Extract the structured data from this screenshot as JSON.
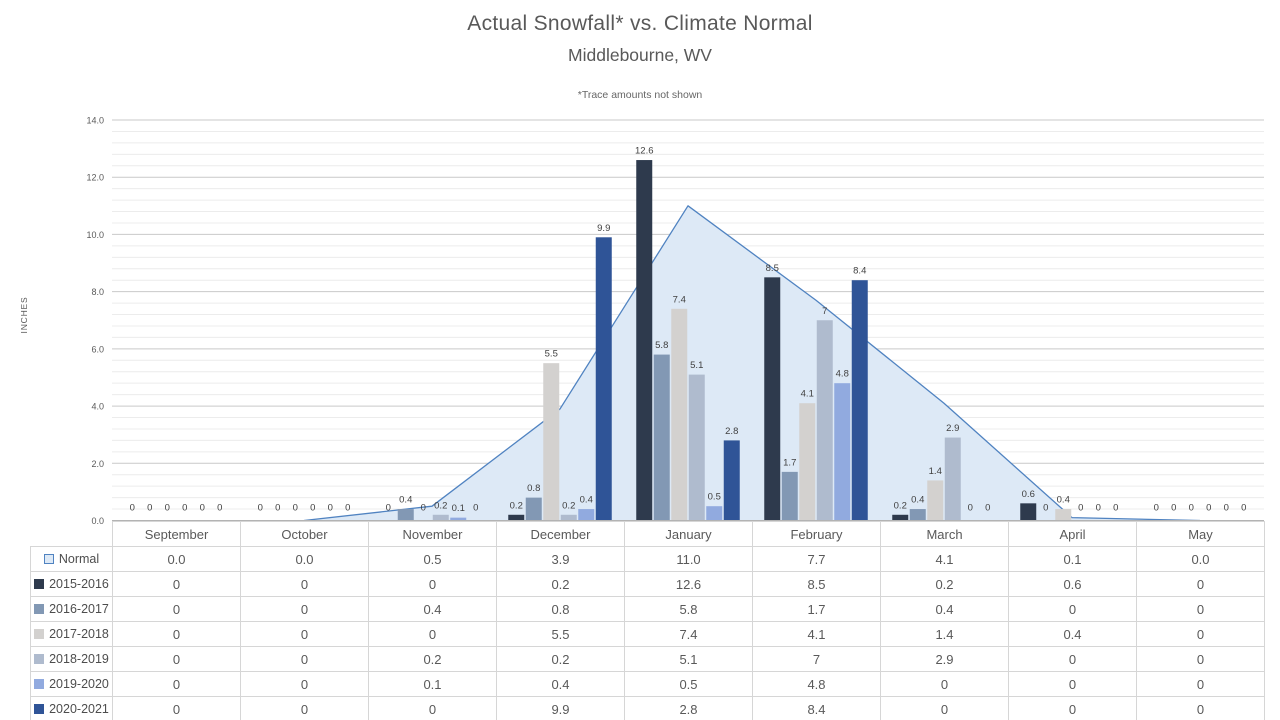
{
  "chart_data": {
    "type": "combo-area-bar-with-data-table",
    "title": "Actual Snowfall* vs. Climate Normal",
    "subtitle": "Middlebourne,  WV",
    "annotation": "*Trace amounts not shown",
    "xlabel": "",
    "ylabel": "INCHES",
    "ylim": [
      0,
      14
    ],
    "y_major_unit": 2.0,
    "y_minor_unit": 0.4,
    "y_major_ticks": [
      "0.0",
      "2.0",
      "4.0",
      "6.0",
      "8.0",
      "10.0",
      "12.0",
      "14.0"
    ],
    "grid": {
      "major": true,
      "minor": true
    },
    "legend_position": "left-column-of-data-table",
    "data_table_shown": true,
    "categories": [
      "September",
      "October",
      "November",
      "December",
      "January",
      "February",
      "March",
      "April",
      "May"
    ],
    "series": [
      {
        "name": "Normal",
        "type": "area",
        "fill": "#dde9f6",
        "line_color": "#5083c1",
        "values": [
          0.0,
          0.0,
          0.5,
          3.9,
          11.0,
          7.7,
          4.1,
          0.1,
          0.0
        ],
        "display": [
          "0.0",
          "0.0",
          "0.5",
          "3.9",
          "11.0",
          "7.7",
          "4.1",
          "0.1",
          "0.0"
        ],
        "data_labels_shown": false
      },
      {
        "name": "2015-2016",
        "type": "bar",
        "color": "#2e3a4d",
        "values": [
          0,
          0,
          0,
          0.2,
          12.6,
          8.5,
          0.2,
          0.6,
          0
        ],
        "display": [
          "0",
          "0",
          "0",
          "0.2",
          "12.6",
          "8.5",
          "0.2",
          "0.6",
          "0"
        ],
        "data_labels_shown": true
      },
      {
        "name": "2016-2017",
        "type": "bar",
        "color": "#8298b4",
        "values": [
          0,
          0,
          0.4,
          0.8,
          5.8,
          1.7,
          0.4,
          0,
          0
        ],
        "display": [
          "0",
          "0",
          "0.4",
          "0.8",
          "5.8",
          "1.7",
          "0.4",
          "0",
          "0"
        ],
        "data_labels_shown": true
      },
      {
        "name": "2017-2018",
        "type": "bar",
        "color": "#d3d1cf",
        "values": [
          0,
          0,
          0,
          5.5,
          7.4,
          4.1,
          1.4,
          0.4,
          0
        ],
        "display": [
          "0",
          "0",
          "0",
          "5.5",
          "7.4",
          "4.1",
          "1.4",
          "0.4",
          "0"
        ],
        "data_labels_shown": true
      },
      {
        "name": "2018-2019",
        "type": "bar",
        "color": "#afbbce",
        "values": [
          0,
          0,
          0.2,
          0.2,
          5.1,
          7,
          2.9,
          0,
          0
        ],
        "display": [
          "0",
          "0",
          "0.2",
          "0.2",
          "5.1",
          "7",
          "2.9",
          "0",
          "0"
        ],
        "data_labels_shown": true
      },
      {
        "name": "2019-2020",
        "type": "bar",
        "color": "#91aadf",
        "values": [
          0,
          0,
          0.1,
          0.4,
          0.5,
          4.8,
          0,
          0,
          0
        ],
        "display": [
          "0",
          "0",
          "0.1",
          "0.4",
          "0.5",
          "4.8",
          "0",
          "0",
          "0"
        ],
        "data_labels_shown": true
      },
      {
        "name": "2020-2021",
        "type": "bar",
        "color": "#2f5497",
        "values": [
          0,
          0,
          0,
          9.9,
          2.8,
          8.4,
          0,
          0,
          0
        ],
        "display": [
          "0",
          "0",
          "0",
          "9.9",
          "2.8",
          "8.4",
          "0",
          "0",
          "0"
        ],
        "data_labels_shown": true
      }
    ],
    "colors": {
      "text_gray": "#595959",
      "data_label": "#404040",
      "major_gridline": "#c9c9c9",
      "minor_gridline": "#ececec",
      "axis_line": "#b3b3b3",
      "table_border": "#d6d6d6"
    }
  }
}
